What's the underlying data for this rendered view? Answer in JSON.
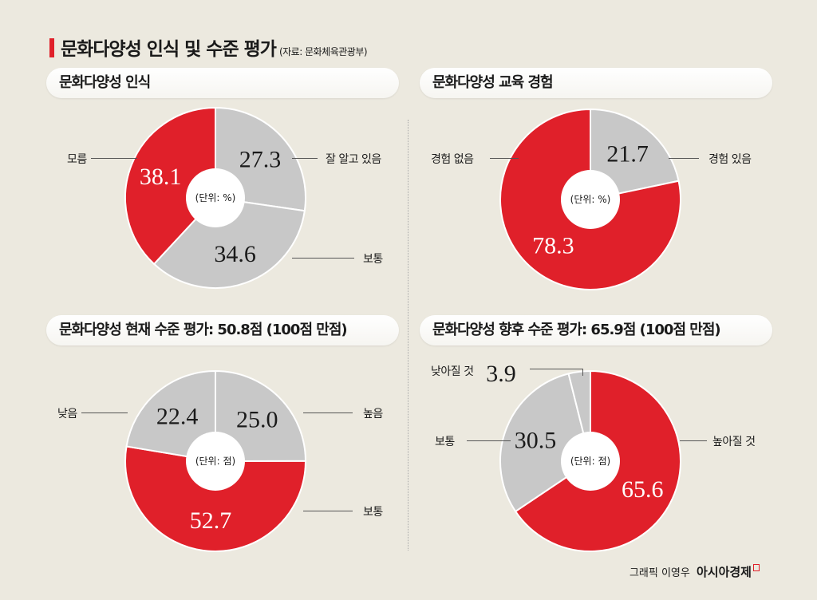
{
  "title": "문화다양성 인식 및 수준 평가",
  "source": "(자료: 문화체육관광부)",
  "credit": {
    "author": "그래픽 이영우",
    "brand": "아시아경제"
  },
  "colors": {
    "red": "#e0202a",
    "gray": "#c8c8c8",
    "background": "#ece9df"
  },
  "chart_data": [
    {
      "type": "pie",
      "title": "문화다양성 인식",
      "unit": "(단위: %)",
      "categories": [
        "잘 알고 있음",
        "보통",
        "모름"
      ],
      "values": [
        27.3,
        34.6,
        38.1
      ],
      "labels": [
        "27.3",
        "34.6",
        "38.1"
      ],
      "highlight": [
        false,
        false,
        true
      ]
    },
    {
      "type": "pie",
      "title": "문화다양성 교육 경험",
      "unit": "(단위: %)",
      "categories": [
        "경험 있음",
        "경험 없음"
      ],
      "values": [
        21.7,
        78.3
      ],
      "labels": [
        "21.7",
        "78.3"
      ],
      "highlight": [
        false,
        true
      ]
    },
    {
      "type": "pie",
      "title": "문화다양성 현재 수준 평가: 50.8점 (100점 만점)",
      "unit": "(단위: 점)",
      "categories": [
        "높음",
        "보통",
        "낮음"
      ],
      "values": [
        25.0,
        52.7,
        22.4
      ],
      "labels": [
        "25.0",
        "52.7",
        "22.4"
      ],
      "highlight": [
        false,
        true,
        false
      ]
    },
    {
      "type": "pie",
      "title": "문화다양성 향후 수준 평가: 65.9점 (100점 만점)",
      "unit": "(단위: 점)",
      "categories": [
        "높아질 것",
        "보통",
        "낮아질 것"
      ],
      "values": [
        65.6,
        30.5,
        3.9
      ],
      "labels": [
        "65.6",
        "30.5",
        "3.9"
      ],
      "highlight": [
        true,
        false,
        false
      ]
    }
  ]
}
